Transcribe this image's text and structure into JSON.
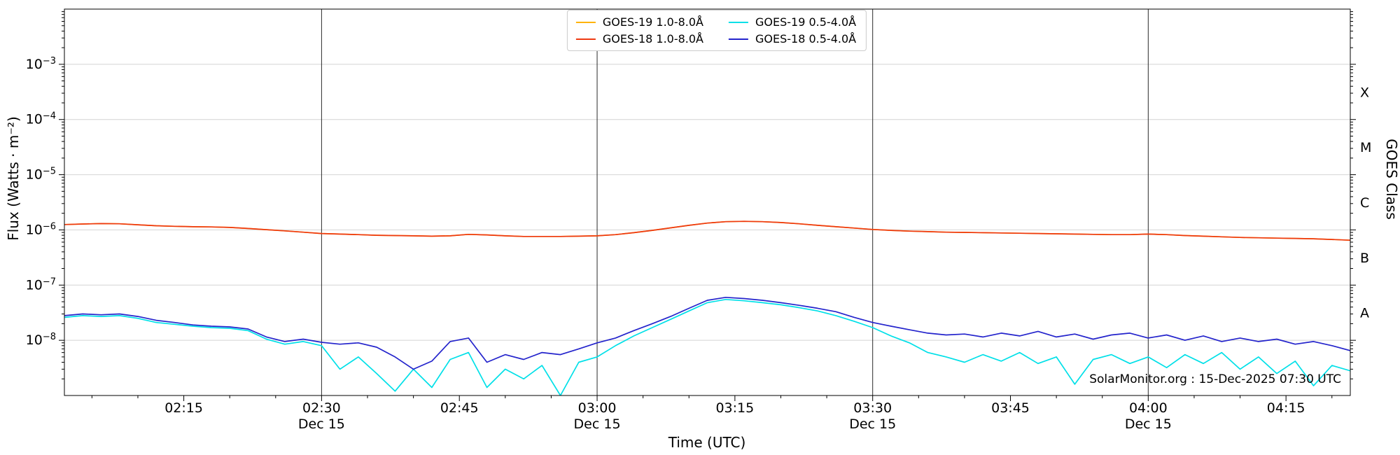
{
  "chart_data": {
    "type": "line",
    "title": "",
    "xlabel": "Time (UTC)",
    "ylabel": "Flux (Watts · m⁻²)",
    "ylabel_right": "GOES Class",
    "watermark": "SolarMonitor.org : 15-Dec-2025 07:30 UTC",
    "x_domain_minutes": [
      122,
      262
    ],
    "y_log_domain": [
      -9,
      -2
    ],
    "x_minor_tick_step_minutes": 5,
    "grid": "horizontal-decades",
    "x_ticks": [
      {
        "min": 135,
        "label": "02:15",
        "day": "",
        "vline": false
      },
      {
        "min": 150,
        "label": "02:30",
        "day": "Dec 15",
        "vline": true
      },
      {
        "min": 165,
        "label": "02:45",
        "day": "",
        "vline": false
      },
      {
        "min": 180,
        "label": "03:00",
        "day": "Dec 15",
        "vline": true
      },
      {
        "min": 195,
        "label": "03:15",
        "day": "",
        "vline": false
      },
      {
        "min": 210,
        "label": "03:30",
        "day": "Dec 15",
        "vline": true
      },
      {
        "min": 225,
        "label": "03:45",
        "day": "",
        "vline": false
      },
      {
        "min": 240,
        "label": "04:00",
        "day": "Dec 15",
        "vline": true
      },
      {
        "min": 255,
        "label": "04:15",
        "day": "",
        "vline": false
      }
    ],
    "y_ticks": [
      {
        "exp": -3
      },
      {
        "exp": -4
      },
      {
        "exp": -5
      },
      {
        "exp": -6
      },
      {
        "exp": -7
      },
      {
        "exp": -8
      }
    ],
    "goes_class_labels": [
      {
        "label": "X",
        "log_center": -3.5
      },
      {
        "label": "M",
        "log_center": -4.5
      },
      {
        "label": "C",
        "log_center": -5.5
      },
      {
        "label": "B",
        "log_center": -6.5
      },
      {
        "label": "A",
        "log_center": -7.5
      }
    ],
    "legend": {
      "location": "upper center",
      "ncol": 2
    },
    "x_start_min": 122,
    "x_step_min": 2,
    "series": [
      {
        "name": "GOES-19 1.0-8.0Å",
        "color": "#ffb300",
        "scale": 1e-06,
        "values": [
          1.25,
          1.28,
          1.3,
          1.29,
          1.24,
          1.19,
          1.16,
          1.14,
          1.13,
          1.11,
          1.06,
          1.01,
          0.96,
          0.91,
          0.86,
          0.84,
          0.82,
          0.8,
          0.79,
          0.78,
          0.77,
          0.78,
          0.83,
          0.81,
          0.78,
          0.76,
          0.76,
          0.76,
          0.77,
          0.78,
          0.82,
          0.89,
          0.98,
          1.09,
          1.21,
          1.33,
          1.41,
          1.43,
          1.41,
          1.36,
          1.29,
          1.21,
          1.14,
          1.08,
          1.02,
          0.98,
          0.95,
          0.93,
          0.91,
          0.9,
          0.89,
          0.88,
          0.87,
          0.86,
          0.85,
          0.84,
          0.83,
          0.82,
          0.82,
          0.84,
          0.82,
          0.79,
          0.77,
          0.75,
          0.73,
          0.72,
          0.71,
          0.7,
          0.69,
          0.67,
          0.65
        ]
      },
      {
        "name": "GOES-18 1.0-8.0Å",
        "color": "#ee3911",
        "scale": 1e-06,
        "values": [
          1.25,
          1.28,
          1.3,
          1.29,
          1.24,
          1.19,
          1.16,
          1.14,
          1.13,
          1.11,
          1.06,
          1.01,
          0.96,
          0.91,
          0.86,
          0.84,
          0.82,
          0.8,
          0.79,
          0.78,
          0.77,
          0.78,
          0.83,
          0.81,
          0.78,
          0.76,
          0.76,
          0.76,
          0.77,
          0.78,
          0.82,
          0.89,
          0.98,
          1.09,
          1.21,
          1.33,
          1.41,
          1.43,
          1.41,
          1.36,
          1.29,
          1.21,
          1.14,
          1.08,
          1.02,
          0.98,
          0.95,
          0.93,
          0.91,
          0.9,
          0.89,
          0.88,
          0.87,
          0.86,
          0.85,
          0.84,
          0.83,
          0.82,
          0.82,
          0.84,
          0.82,
          0.79,
          0.77,
          0.75,
          0.73,
          0.72,
          0.71,
          0.7,
          0.69,
          0.67,
          0.65
        ]
      },
      {
        "name": "GOES-19 0.5-4.0Å",
        "color": "#00e0e8",
        "scale": 1e-08,
        "values": [
          2.6,
          2.8,
          2.7,
          2.8,
          2.5,
          2.1,
          1.95,
          1.8,
          1.7,
          1.65,
          1.5,
          1.05,
          0.85,
          0.95,
          0.8,
          0.3,
          0.5,
          0.25,
          0.12,
          0.3,
          0.14,
          0.45,
          0.6,
          0.14,
          0.3,
          0.2,
          0.35,
          0.1,
          0.4,
          0.5,
          0.8,
          1.2,
          1.7,
          2.4,
          3.4,
          4.8,
          5.5,
          5.2,
          4.8,
          4.4,
          3.9,
          3.4,
          2.8,
          2.2,
          1.7,
          1.2,
          0.9,
          0.6,
          0.5,
          0.4,
          0.55,
          0.42,
          0.6,
          0.38,
          0.5,
          0.16,
          0.45,
          0.55,
          0.38,
          0.5,
          0.32,
          0.55,
          0.38,
          0.6,
          0.3,
          0.5,
          0.25,
          0.42,
          0.15,
          0.35,
          0.28
        ]
      },
      {
        "name": "GOES-18 0.5-4.0Å",
        "color": "#2424cc",
        "scale": 1e-08,
        "values": [
          2.8,
          3.0,
          2.9,
          3.0,
          2.7,
          2.3,
          2.1,
          1.9,
          1.8,
          1.75,
          1.6,
          1.15,
          0.95,
          1.05,
          0.92,
          0.85,
          0.9,
          0.75,
          0.5,
          0.3,
          0.42,
          0.95,
          1.1,
          0.4,
          0.55,
          0.45,
          0.6,
          0.55,
          0.7,
          0.9,
          1.1,
          1.5,
          2.0,
          2.7,
          3.8,
          5.3,
          6.0,
          5.7,
          5.3,
          4.8,
          4.3,
          3.8,
          3.3,
          2.6,
          2.1,
          1.8,
          1.55,
          1.35,
          1.25,
          1.3,
          1.15,
          1.35,
          1.2,
          1.45,
          1.15,
          1.3,
          1.05,
          1.25,
          1.35,
          1.1,
          1.25,
          1.0,
          1.2,
          0.95,
          1.1,
          0.95,
          1.05,
          0.85,
          0.95,
          0.8,
          0.65
        ]
      }
    ],
    "colors": {
      "grid": "#d4d4d4",
      "day_line": "#2a2a2a",
      "frame": "#000000",
      "background": "#ffffff"
    }
  }
}
